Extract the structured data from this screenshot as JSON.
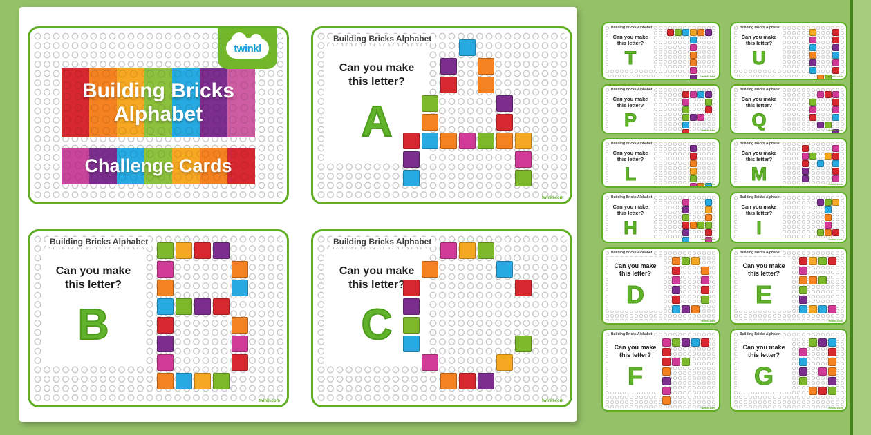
{
  "brand": {
    "name": "twinkl"
  },
  "shared": {
    "header": "Building Bricks Alphabet",
    "prompt_line1": "Can you make",
    "prompt_line2": "this letter?",
    "footer": "twinkl.com"
  },
  "title_card": {
    "line1": "Building Bricks",
    "line2": "Alphabet",
    "subtitle": "Challenge Cards",
    "banner1_colors": [
      "#d7282f",
      "#f58220",
      "#f7a823",
      "#8cc13d",
      "#27aae1",
      "#7b2e8d",
      "#cd5ca2"
    ],
    "banner2_colors": [
      "#c9459c",
      "#7b2e8d",
      "#27aae1",
      "#8cc13d",
      "#f7a823",
      "#f58220",
      "#d7282f"
    ]
  },
  "colors": {
    "accent_green": "#5fae24",
    "letter_green": "#62b32c",
    "background_green": "#95c168",
    "brand_blue": "#18a0dc"
  },
  "palette": {
    "R": "#d7282f",
    "O": "#f58220",
    "Y": "#f7a823",
    "G": "#7cb829",
    "B": "#27aae1",
    "P": "#7b2e8d",
    "M": "#d23a97"
  },
  "cards": {
    "A": {
      "letter": "A",
      "grid": [
        "...B...",
        "..P.O..",
        "..R.O..",
        ".G...P.",
        ".O...R.",
        "RBOMGOY",
        "P.....M",
        "B.....G"
      ]
    },
    "B": {
      "letter": "B",
      "grid": [
        "GYRP.",
        "M...O",
        "O...B",
        "BGPR.",
        "R...O",
        "P...M",
        "M...R",
        "OBYG."
      ]
    },
    "C": {
      "letter": "C",
      "grid": [
        "..MYG..",
        ".O...B.",
        "R.....R",
        "P......",
        "G......",
        "B.....G",
        ".M...Y.",
        "..ORP.."
      ]
    },
    "T": {
      "letter": "T",
      "grid": [
        "RGBYOP",
        "...B..",
        "...M..",
        "...O..",
        "...O..",
        "...M..",
        "...P.."
      ]
    },
    "U": {
      "letter": "U",
      "grid": [
        "Y..R",
        "M..R",
        "B..P",
        "O..B",
        "P..M",
        "B..R",
        ".OG."
      ]
    },
    "P": {
      "letter": "P",
      "grid": [
        "RMBP",
        "M..G",
        "G..R",
        "GPM.",
        "B...",
        "R..."
      ]
    },
    "Q": {
      "letter": "Q",
      "grid": [
        ".MRM",
        "G..R",
        "M..M",
        "R..B",
        ".PG.",
        "...P"
      ]
    },
    "L": {
      "letter": "L",
      "grid": [
        "P..",
        "R..",
        "O..",
        "Y..",
        "G..",
        "MOB"
      ]
    },
    "M": {
      "letter": "M",
      "grid": [
        "R...M",
        "MG.YR",
        "R.B.B",
        "P...R",
        "P...M"
      ]
    },
    "H": {
      "letter": "H",
      "grid": [
        "M..B",
        "P..Y",
        "G..O",
        "ROGG",
        "P..R",
        "B..M"
      ]
    },
    "I": {
      "letter": "I",
      "grid": [
        "PGY",
        ".B.",
        ".O.",
        ".M.",
        "GOR"
      ]
    },
    "D": {
      "letter": "D",
      "grid": [
        "OGY.",
        "R..O",
        "M..M",
        "P..R",
        "R..G",
        "BPO."
      ]
    },
    "E": {
      "letter": "E",
      "grid": [
        "RYGR",
        "M...",
        "OOG.",
        "G...",
        "P...",
        "BYBM"
      ]
    },
    "F": {
      "letter": "F",
      "grid": [
        "MGPBR",
        "R....",
        "RMG..",
        "O....",
        "P....",
        "M....",
        "O...."
      ]
    },
    "G": {
      "letter": "G",
      "grid": [
        ".GPB",
        "M..R",
        "B..O",
        "P.MO",
        "G..P",
        ".ORG"
      ]
    }
  }
}
